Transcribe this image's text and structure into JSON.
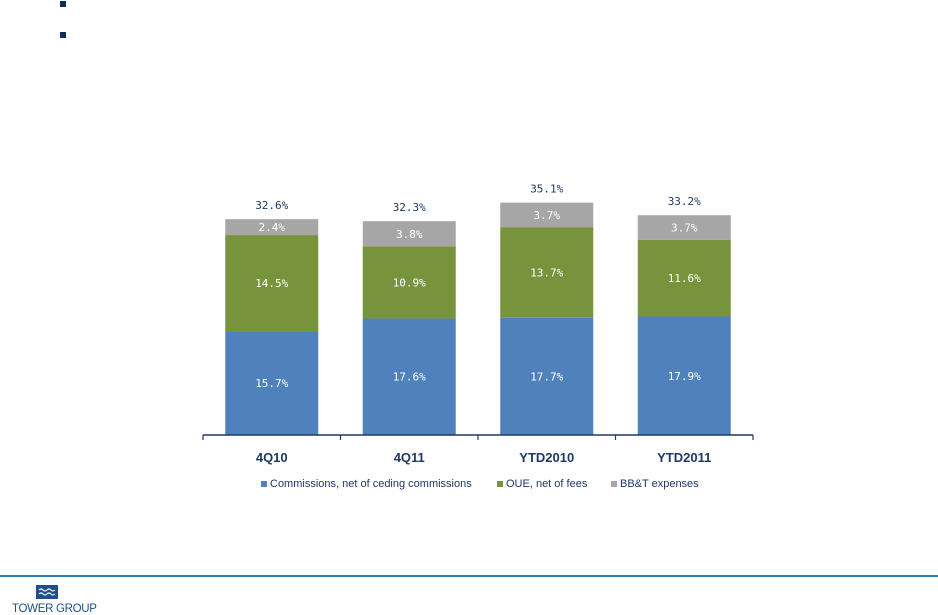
{
  "bullets": [
    "",
    ""
  ],
  "chart_data": {
    "type": "bar",
    "stacked": true,
    "categories": [
      "4Q10",
      "4Q11",
      "YTD2010",
      "YTD2011"
    ],
    "series": [
      {
        "name": "Commissions, net of ceding commissions",
        "color": "#4f81bd",
        "values": [
          15.7,
          17.6,
          17.7,
          17.9
        ],
        "labels": [
          "15.7%",
          "17.6%",
          "17.7%",
          "17.9%"
        ]
      },
      {
        "name": "OUE, net of fees",
        "color": "#77933c",
        "values": [
          14.5,
          10.9,
          13.7,
          11.6
        ],
        "labels": [
          "14.5%",
          "10.9%",
          "13.7%",
          "11.6%"
        ]
      },
      {
        "name": "BB&T expenses",
        "color": "#a6a6a6",
        "values": [
          2.4,
          3.8,
          3.7,
          3.7
        ],
        "labels": [
          "2.4%",
          "3.8%",
          "3.7%",
          "3.7%"
        ]
      }
    ],
    "totals": [
      "32.6%",
      "32.3%",
      "35.1%",
      "33.2%"
    ],
    "total_color": "#1f3864",
    "ylim": [
      0,
      36
    ],
    "grid": false,
    "legend": "bottom",
    "title": "",
    "xlabel": "",
    "ylabel": ""
  },
  "logo": {
    "text": "TOWER GROUP",
    "icon": "tower-waves-icon",
    "color": "#1f4e8c"
  },
  "footer": {
    "line_color": "#2f7fb5"
  }
}
